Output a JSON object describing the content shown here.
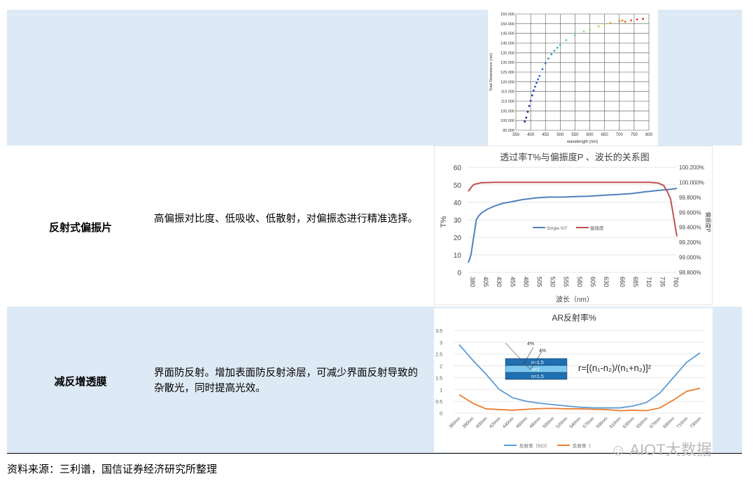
{
  "rows": [
    {
      "label": "",
      "description": ""
    },
    {
      "label": "反射式偏振片",
      "description": "高偏振对比度、低吸收、低散射，对偏振态进行精准选择。"
    },
    {
      "label": "减反增透膜",
      "description": "界面防反射。增加表面防反射涂层，可减少界面反射导致的杂散光，同时提高光效。"
    }
  ],
  "source": "资料来源：三利谱，国信证券经济研究所整理",
  "watermark": "AIOT大数据",
  "chart_data": [
    {
      "type": "scatter",
      "title": "",
      "xlabel": "wavelength (nm)",
      "ylabel": "Total Retardance (nm)",
      "xlim": [
        350,
        800
      ],
      "ylim": [
        95,
        155
      ],
      "xticks": [
        350,
        400,
        450,
        500,
        550,
        600,
        650,
        700,
        750,
        800
      ],
      "yticks": [
        "95.000",
        "100.000",
        "105.000",
        "110.000",
        "115.000",
        "120.000",
        "125.000",
        "130.000",
        "135.000",
        "140.000",
        "145.000",
        "150.000",
        "155.000"
      ],
      "grid": true,
      "x": [
        380,
        385,
        390,
        395,
        400,
        405,
        410,
        415,
        420,
        425,
        430,
        440,
        450,
        460,
        470,
        480,
        490,
        500,
        520,
        550,
        580,
        600,
        630,
        650,
        670,
        700,
        710,
        720,
        740,
        760,
        780
      ],
      "y": [
        99.5,
        101.5,
        104.5,
        107.5,
        110.2,
        113,
        115.5,
        117.5,
        119.5,
        121.3,
        123,
        126.5,
        129.5,
        132,
        134.2,
        136,
        137.6,
        139,
        141.5,
        144,
        146,
        147,
        148.6,
        149.7,
        150.4,
        151.3,
        151.6,
        151,
        151.7,
        152.2,
        152.5
      ],
      "colorscale": [
        "#1a1aa8",
        "#2b7fd8",
        "#39d0c0",
        "#7fe07a",
        "#d8d040",
        "#e86a20",
        "#d8281c"
      ]
    },
    {
      "type": "line",
      "title": "透过率T%与偏振度P 、波长的关系图",
      "xlabel": "波长（nm）",
      "ylabel": "T%",
      "y2label": "偏振度P",
      "ylim": [
        0,
        60
      ],
      "y2lim": [
        98.8,
        100.2
      ],
      "xlim": [
        380,
        770
      ],
      "xticks": [
        "380",
        "405",
        "430",
        "455",
        "480",
        "505",
        "530",
        "555",
        "580",
        "605",
        "630",
        "660",
        "685",
        "710",
        "735",
        "760"
      ],
      "yticks": [
        "0",
        "10",
        "20",
        "30",
        "40",
        "50",
        "60"
      ],
      "y2ticks": [
        "98.800%",
        "99.000%",
        "99.200%",
        "99.400%",
        "99.600%",
        "99.800%",
        "100.000%",
        "100.200%"
      ],
      "legend_position": "center",
      "grid": true,
      "series": [
        {
          "name": "Single %T",
          "axis": "left",
          "color": "#4f81bd",
          "x": [
            380,
            385,
            390,
            395,
            400,
            405,
            415,
            430,
            445,
            455,
            480,
            505,
            530,
            555,
            580,
            605,
            630,
            660,
            685,
            710,
            735,
            760,
            770
          ],
          "y": [
            5.5,
            10,
            20,
            30,
            32.5,
            34,
            36,
            38,
            39.5,
            40,
            41.5,
            42.5,
            43,
            43,
            43.3,
            43.5,
            44,
            44.5,
            45,
            46,
            46.8,
            47.5,
            48
          ]
        },
        {
          "name": "偏振度",
          "axis": "right",
          "color": "#c0504d",
          "x": [
            380,
            385,
            390,
            395,
            405,
            430,
            455,
            530,
            605,
            685,
            720,
            735,
            745,
            752,
            758,
            762,
            766,
            770
          ],
          "y": [
            99.88,
            99.93,
            99.97,
            99.98,
            99.995,
            100.0,
            100.0,
            100.0,
            100.0,
            100.0,
            100.0,
            99.99,
            99.96,
            99.88,
            99.78,
            99.62,
            99.45,
            99.28
          ]
        }
      ]
    },
    {
      "type": "line",
      "title": "AR反射率%",
      "ylim": [
        0,
        3.5
      ],
      "yticks": [
        "0",
        "0.5",
        "1",
        "1.5",
        "2",
        "2.5",
        "3",
        "3.5"
      ],
      "categories": [
        "360nm",
        "380nm",
        "400nm",
        "420nm",
        "440nm",
        "460nm",
        "480nm",
        "500nm",
        "520nm",
        "540nm",
        "570nm",
        "590nm",
        "610nm",
        "630nm",
        "650nm",
        "670nm",
        "690nm",
        "710nm",
        "730nm"
      ],
      "legend_position": "bottom",
      "grid": true,
      "annotation": {
        "formula": "r=[(n₁-n₂)/(n₁+n₂)]²",
        "layers": [
          "n=1.5",
          "n=1",
          "n=1.5"
        ],
        "reflect": [
          "4%",
          "4%"
        ]
      },
      "series": [
        {
          "name": "反射率（SCI）",
          "color": "#5b9bd5",
          "values": [
            2.9,
            2.25,
            1.65,
            1.0,
            0.65,
            0.5,
            0.42,
            0.36,
            0.3,
            0.25,
            0.22,
            0.22,
            0.22,
            0.3,
            0.45,
            0.85,
            1.5,
            2.15,
            2.55
          ]
        },
        {
          "name": "反射率（",
          "color": "#ed7d31",
          "values": [
            0.78,
            0.42,
            0.18,
            0.15,
            0.12,
            0.16,
            0.19,
            0.2,
            0.18,
            0.18,
            0.16,
            0.15,
            0.1,
            0.12,
            0.1,
            0.22,
            0.55,
            0.92,
            1.05
          ]
        }
      ]
    }
  ]
}
